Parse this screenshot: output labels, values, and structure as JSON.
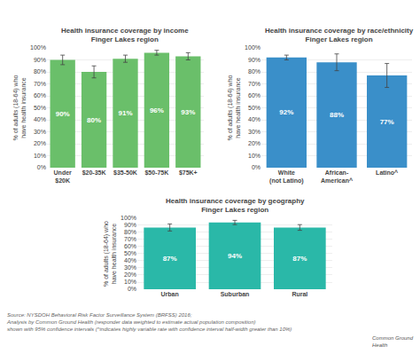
{
  "chart_data": [
    {
      "type": "bar",
      "title": "Health insurance coverage by income\nFinger Lakes region",
      "categories": [
        "Under\n$20K",
        "$20-35K",
        "$35-50K",
        "$50-75K",
        "$75K+"
      ],
      "values": [
        90,
        80,
        91,
        96,
        93
      ],
      "errors": [
        4,
        5,
        3,
        2,
        3
      ],
      "value_labels": [
        "90%",
        "80%",
        "91%",
        "96%",
        "93%"
      ],
      "data_labels": true,
      "color": "#6abf6a",
      "ylabel": "% of adults (18-64) who\nhave health insurance",
      "ylim": [
        0,
        100
      ],
      "yticks": [
        {
          "value": 0,
          "label": "0%"
        },
        {
          "value": 10,
          "label": "10%"
        },
        {
          "value": 20,
          "label": "20%"
        },
        {
          "value": 30,
          "label": "30%"
        },
        {
          "value": 40,
          "label": "40%"
        },
        {
          "value": 50,
          "label": "50%"
        },
        {
          "value": 60,
          "label": "60%"
        },
        {
          "value": 70,
          "label": "70%"
        },
        {
          "value": 80,
          "label": "80%"
        },
        {
          "value": 90,
          "label": "90%"
        },
        {
          "value": 100,
          "label": "100%"
        }
      ],
      "grid": true
    },
    {
      "type": "bar",
      "title": "Health insurance coverage by race/ethnicity\nFinger Lakes region",
      "categories": [
        "White\n(not Latino)",
        "African-\nAmerican^",
        "Latino^"
      ],
      "values": [
        92,
        88,
        77
      ],
      "errors": [
        2,
        7,
        10
      ],
      "value_labels": [
        "92%",
        "88%",
        "77%"
      ],
      "data_labels": true,
      "color": "#3a8fc9",
      "ylabel": "% of adults (18-64) who\nhave health insurance",
      "ylim": [
        0,
        100
      ],
      "yticks": [
        {
          "value": 0,
          "label": "0%"
        },
        {
          "value": 10,
          "label": "10%"
        },
        {
          "value": 20,
          "label": "20%"
        },
        {
          "value": 30,
          "label": "30%"
        },
        {
          "value": 40,
          "label": "40%"
        },
        {
          "value": 50,
          "label": "50%"
        },
        {
          "value": 60,
          "label": "60%"
        },
        {
          "value": 70,
          "label": "70%"
        },
        {
          "value": 80,
          "label": "80%"
        },
        {
          "value": 90,
          "label": "90%"
        },
        {
          "value": 100,
          "label": "100%"
        }
      ],
      "grid": true
    },
    {
      "type": "bar",
      "title": "Health insurance coverage by geography\nFinger Lakes region",
      "categories": [
        "Urban",
        "Suburban",
        "Rural"
      ],
      "values": [
        87,
        94,
        87
      ],
      "errors": [
        5,
        3,
        4
      ],
      "value_labels": [
        "87%",
        "94%",
        "87%"
      ],
      "data_labels": true,
      "color": "#2ab8a8",
      "ylabel": "% of adults (18-64) who\nhave health insurance",
      "ylim": [
        0,
        100
      ],
      "yticks": [
        {
          "value": 0,
          "label": "0%"
        },
        {
          "value": 10,
          "label": "10%"
        },
        {
          "value": 20,
          "label": "20%"
        },
        {
          "value": 30,
          "label": "30%"
        },
        {
          "value": 40,
          "label": "40%"
        },
        {
          "value": 50,
          "label": "50%"
        },
        {
          "value": 60,
          "label": "60%"
        },
        {
          "value": 70,
          "label": "70%"
        },
        {
          "value": 80,
          "label": "80%"
        },
        {
          "value": 90,
          "label": "90%"
        },
        {
          "value": 100,
          "label": "100%"
        }
      ],
      "grid": true
    }
  ],
  "annotations": [
    "Source: NYSDOH Behavioral Risk Factor Surveillance System (BRFSS) 2016;\nAnalysis by Common Ground Health (responder data weighted to estimate actual population composition)\nshown with 95% confidence intervals (^indicates highly variable rate with confidence interval half-width greater than 10%)",
    "Common Ground\nHealth"
  ]
}
